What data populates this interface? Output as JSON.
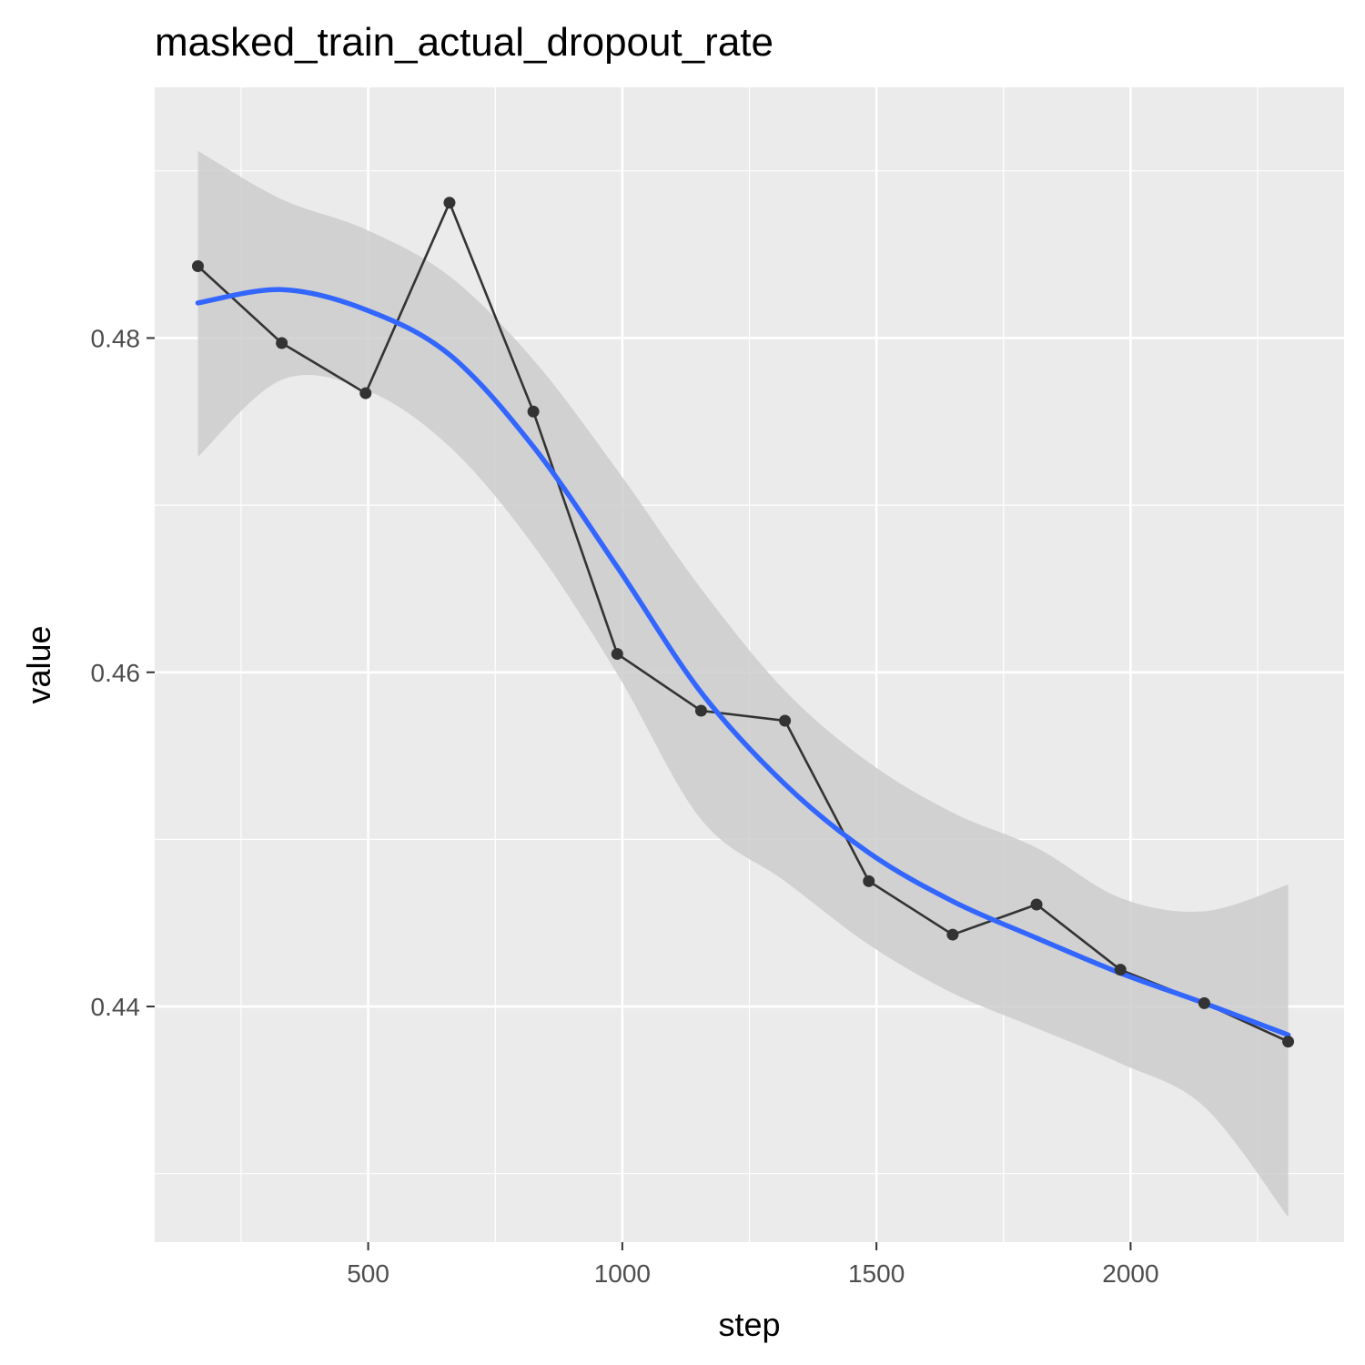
{
  "chart_data": {
    "type": "line",
    "title": "masked_train_actual_dropout_rate",
    "xlabel": "step",
    "ylabel": "value",
    "xlim": [
      80,
      2420
    ],
    "ylim": [
      0.4259,
      0.495
    ],
    "x_ticks": [
      500,
      1000,
      1500,
      2000
    ],
    "x_tick_labels": [
      "500",
      "1000",
      "1500",
      "2000"
    ],
    "x_minor_ticks": [
      250,
      750,
      1250,
      1750,
      2250
    ],
    "y_ticks": [
      0.44,
      0.46,
      0.48
    ],
    "y_tick_labels": [
      "0.44",
      "0.46",
      "0.48"
    ],
    "y_minor_ticks": [
      0.43,
      0.45,
      0.47,
      0.49
    ],
    "grid": true,
    "legend": "none",
    "colors": {
      "panel": "#ebebeb",
      "grid": "#ffffff",
      "line": "#333333",
      "smooth": "#3366ff",
      "ribbon": "#cccccc"
    },
    "series": [
      {
        "kind": "points-line",
        "x": [
          165,
          330,
          495,
          660,
          825,
          990,
          1155,
          1320,
          1485,
          1650,
          1815,
          1980,
          2145,
          2310
        ],
        "values": [
          0.4843,
          0.4797,
          0.4767,
          0.4881,
          0.4756,
          0.4611,
          0.4577,
          0.4571,
          0.4475,
          0.4443,
          0.4461,
          0.4422,
          0.4402,
          0.4379
        ]
      },
      {
        "kind": "smooth",
        "x": [
          165,
          330,
          495,
          660,
          825,
          990,
          1155,
          1320,
          1485,
          1650,
          1815,
          1980,
          2145,
          2310
        ],
        "values": [
          0.4821,
          0.4829,
          0.4817,
          0.479,
          0.4735,
          0.4663,
          0.4588,
          0.4533,
          0.4492,
          0.4463,
          0.4441,
          0.442,
          0.4402,
          0.4383
        ],
        "lower": [
          0.4729,
          0.4775,
          0.4769,
          0.4735,
          0.4676,
          0.4599,
          0.4512,
          0.4475,
          0.4437,
          0.4408,
          0.4387,
          0.4366,
          0.434,
          0.4274
        ],
        "upper": [
          0.4912,
          0.4883,
          0.4865,
          0.4837,
          0.4787,
          0.4721,
          0.465,
          0.4589,
          0.4546,
          0.4516,
          0.4495,
          0.4465,
          0.4457,
          0.4473
        ]
      }
    ]
  }
}
